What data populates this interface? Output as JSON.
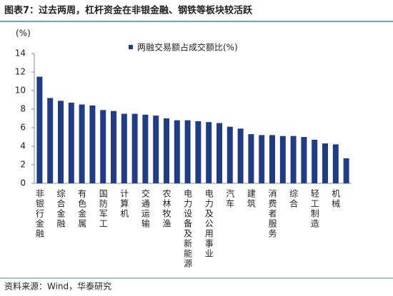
{
  "chart_data": {
    "type": "bar",
    "title": "图表7：过去两周，杠杆资金在非银金融、钢铁等板块较活跃",
    "y_label": "(%)",
    "source": "资料来源：Wind，华泰研究",
    "categories": [
      "非银行金融",
      null,
      "综合金融",
      null,
      "有色金属",
      null,
      "国防军工",
      null,
      "计算机",
      null,
      "交通运输",
      null,
      "农林牧渔",
      null,
      "电力设备及新能源",
      null,
      "电力及公用事业",
      null,
      "汽车",
      null,
      "建筑",
      null,
      "消费者服务",
      null,
      "综合",
      null,
      "轻工制造",
      null,
      "机械",
      null
    ],
    "series": [
      {
        "name": "两融交易额占成交额比(%)",
        "color": "#1f3c88",
        "values": [
          11.5,
          9.2,
          8.9,
          8.7,
          8.5,
          8.4,
          7.9,
          7.8,
          7.5,
          7.5,
          7.4,
          7.3,
          7.0,
          6.8,
          6.8,
          6.7,
          6.6,
          6.5,
          6.1,
          5.9,
          5.3,
          5.2,
          5.2,
          5.1,
          5.1,
          5.0,
          4.7,
          4.3,
          4.2,
          2.7
        ]
      }
    ],
    "ylim": [
      0,
      14
    ],
    "yticks": [
      0,
      2,
      4,
      6,
      8,
      10,
      12,
      14
    ],
    "legend": "top"
  }
}
